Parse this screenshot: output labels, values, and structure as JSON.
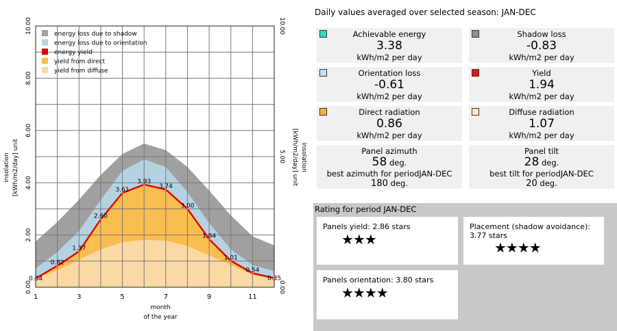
{
  "chart_data": {
    "type": "area",
    "x": [
      1,
      2,
      3,
      4,
      5,
      6,
      7,
      8,
      9,
      10,
      11,
      12
    ],
    "xticks": [
      "1",
      "3",
      "5",
      "7",
      "9",
      "11"
    ],
    "xlabel": "month",
    "xlabel2": "of the year",
    "ylabel_left": "insolation",
    "ylabel_left2": "[kWh/m2/day] unit",
    "ylabel_right": "insolation",
    "ylabel_right2": "[kWh/m2/day] unit",
    "yticks_left": [
      "0.00",
      "2.00",
      "4.00",
      "6.00",
      "8.00",
      "10.00"
    ],
    "yticks_right": [
      "0.00",
      "5.00",
      "10.00"
    ],
    "ylim": [
      0,
      10
    ],
    "xlim": [
      1,
      12
    ],
    "grid": true,
    "legend_position": "top-left",
    "series": [
      {
        "name": "energy loss due to shadow",
        "color": "#a0a0a0",
        "values": [
          1.75,
          2.5,
          3.35,
          4.3,
          5.1,
          5.5,
          5.25,
          4.6,
          3.7,
          2.75,
          1.95,
          1.6
        ]
      },
      {
        "name": "energy loss due to orientation",
        "color": "#b4d2e2",
        "values": [
          0.72,
          1.35,
          2.15,
          3.35,
          4.45,
          4.9,
          4.6,
          3.65,
          2.45,
          1.45,
          0.85,
          0.62
        ]
      },
      {
        "name": "energy yield",
        "color": "#e00000",
        "values": [
          0.34,
          0.82,
          1.37,
          2.6,
          3.61,
          3.93,
          3.74,
          3.0,
          1.84,
          1.01,
          0.54,
          0.35
        ]
      },
      {
        "name": "yield from direct",
        "color": "#f9bd50",
        "values": [
          0.34,
          0.82,
          1.37,
          2.6,
          3.61,
          3.93,
          3.74,
          3.0,
          1.84,
          1.01,
          0.54,
          0.35
        ]
      },
      {
        "name": "yield from diffuse",
        "color": "#fad9a4",
        "values": [
          0.32,
          0.65,
          1.05,
          1.45,
          1.72,
          1.82,
          1.78,
          1.58,
          1.22,
          0.85,
          0.47,
          0.3
        ]
      }
    ],
    "data_labels": [
      "0.34",
      "0.82",
      "1.37",
      "2.60",
      "3.61",
      "3.93",
      "3.74",
      "3.00",
      "1.84",
      "1.01",
      "0.54",
      "0.35"
    ]
  },
  "season_title": "Daily values averaged over selected season: JAN-DEC",
  "cards": [
    {
      "label": "Achievable energy",
      "value": "3.38",
      "unit": "kWh/m2 per day",
      "color": "#2de0b8"
    },
    {
      "label": "Shadow loss",
      "value": "-0.83",
      "unit": "kWh/m2 per day",
      "color": "#909090"
    },
    {
      "label": "Orientation loss",
      "value": "-0.61",
      "unit": "kWh/m2 per day",
      "color": "#c8e0ec"
    },
    {
      "label": "Yield",
      "value": "1.94",
      "unit": "kWh/m2 per day",
      "color": "#ee1010"
    },
    {
      "label": "Direct radiation",
      "value": "0.86",
      "unit": "kWh/m2 per day",
      "color": "#f7b040"
    },
    {
      "label": "Diffuse radiation",
      "value": "1.07",
      "unit": "kWh/m2 per day",
      "color": "#fde8c4"
    }
  ],
  "azimuth": {
    "label": "Panel azimuth",
    "value": "58",
    "unit": "deg.",
    "best_label": "best azimuth for periodJAN-DEC",
    "best_value": "180",
    "best_unit": "deg."
  },
  "tilt": {
    "label": "Panel tilt",
    "value": "28",
    "unit": "deg.",
    "best_label": "best tilt for periodJAN-DEC",
    "best_value": "20",
    "best_unit": "deg."
  },
  "rating": {
    "title": "Rating for period JAN-DEC",
    "yield_text": "Panels yield: 2.86 stars",
    "yield_stars": 2.86,
    "yield_glyphs": "★★★",
    "placement_text": "Placement (shadow avoidance): 3.77 stars",
    "placement_stars": 3.77,
    "placement_glyphs": "★★★★",
    "orientation_text": "Panels orientation: 3.80 stars",
    "orientation_stars": 3.8,
    "orientation_glyphs": "★★★★"
  }
}
